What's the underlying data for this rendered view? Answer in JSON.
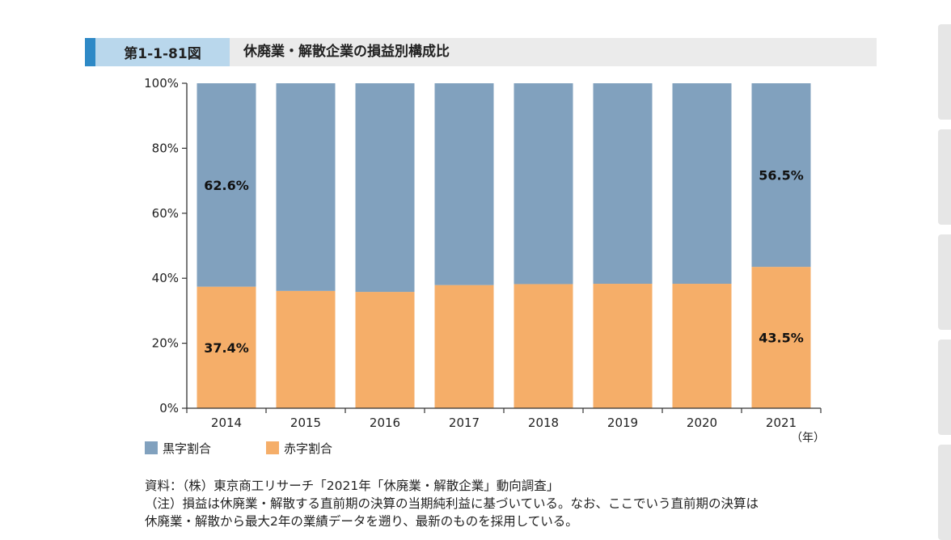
{
  "figure": {
    "label": "第1-1-81図",
    "title": "休廃業・解散企業の損益別構成比"
  },
  "colors": {
    "accent": "#2e89c6",
    "label_bg": "#b9d7ec",
    "title_bg": "#ebebeb"
  },
  "chart_data": {
    "type": "bar",
    "stacked": true,
    "categories": [
      "2014",
      "2015",
      "2016",
      "2017",
      "2018",
      "2019",
      "2020",
      "2021"
    ],
    "series": [
      {
        "name": "赤字割合",
        "color": "#f5ae69",
        "values": [
          37.4,
          36.1,
          35.8,
          37.9,
          38.2,
          38.3,
          38.3,
          43.5
        ]
      },
      {
        "name": "黒字割合",
        "color": "#81a1be",
        "values": [
          62.6,
          63.9,
          64.2,
          62.1,
          61.8,
          61.7,
          61.7,
          56.5
        ]
      }
    ],
    "data_labels": [
      {
        "series": "黒字割合",
        "category": "2014",
        "text": "62.6%"
      },
      {
        "series": "赤字割合",
        "category": "2014",
        "text": "37.4%"
      },
      {
        "series": "黒字割合",
        "category": "2021",
        "text": "56.5%"
      },
      {
        "series": "赤字割合",
        "category": "2021",
        "text": "43.5%"
      }
    ],
    "y_ticks": [
      0,
      20,
      40,
      60,
      80,
      100
    ],
    "y_tick_labels": [
      "0%",
      "20%",
      "40%",
      "60%",
      "80%",
      "100%"
    ],
    "ylim": [
      0,
      100
    ],
    "xunit": "（年）",
    "legend_position": "bottom-left",
    "grid": false
  },
  "legend": [
    {
      "label": "黒字割合",
      "color": "#81a1be"
    },
    {
      "label": "赤字割合",
      "color": "#f5ae69"
    }
  ],
  "notes": {
    "source": "資料：（株）東京商工リサーチ「2021年「休廃業・解散企業」動向調査」",
    "note_line1": "（注）損益は休廃業・解散する直前期の決算の当期純利益に基づいている。なお、ここでいう直前期の決算は",
    "note_line2": "休廃業・解散から最大2年の業績データを遡り、最新のものを採用している。"
  }
}
